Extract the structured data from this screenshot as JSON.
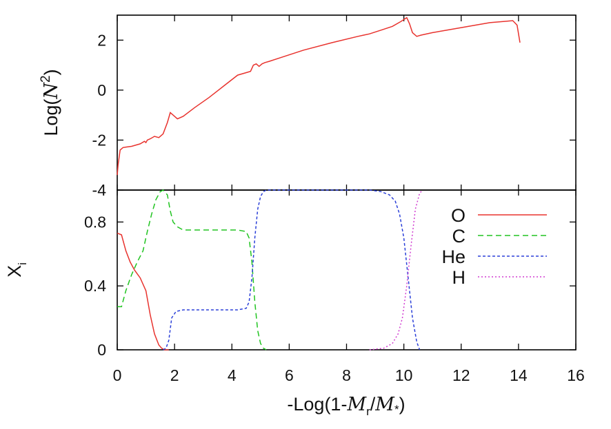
{
  "chart_data": [
    {
      "type": "line",
      "panel": "top",
      "ylabel": {
        "prefix": "Log(",
        "italic": "N",
        "sup": "2",
        "suffix": ")"
      },
      "xlim": [
        0,
        16
      ],
      "ylim": [
        -4,
        3
      ],
      "yticks": [
        -4,
        -2,
        0,
        2
      ],
      "ytick_labels": [
        "-4",
        "-2",
        "0",
        "2"
      ],
      "series": [
        {
          "color": "#e8322d",
          "dash": "solid",
          "x": [
            0.0,
            0.03,
            0.1,
            0.2,
            0.3,
            0.5,
            0.8,
            0.95,
            1.0,
            1.05,
            1.15,
            1.3,
            1.45,
            1.6,
            1.75,
            1.85,
            1.95,
            2.1,
            2.3,
            2.7,
            3.2,
            3.7,
            4.2,
            4.5,
            4.65,
            4.75,
            4.85,
            4.95,
            5.05,
            5.15,
            5.3,
            5.7,
            6.5,
            7.5,
            8.4,
            8.6,
            8.8,
            9.2,
            9.6,
            9.9,
            10.1,
            10.2,
            10.3,
            10.45,
            10.6,
            11.0,
            11.5,
            12.0,
            12.5,
            13.0,
            13.5,
            13.8,
            13.95,
            14.05
          ],
          "y": [
            -3.4,
            -3.0,
            -2.4,
            -2.3,
            -2.28,
            -2.25,
            -2.15,
            -2.05,
            -2.1,
            -2.0,
            -1.95,
            -1.85,
            -1.9,
            -1.75,
            -1.3,
            -0.9,
            -1.0,
            -1.15,
            -1.05,
            -0.7,
            -0.3,
            0.15,
            0.6,
            0.7,
            0.75,
            1.0,
            1.05,
            0.95,
            1.05,
            1.1,
            1.15,
            1.3,
            1.6,
            1.9,
            2.15,
            2.2,
            2.25,
            2.4,
            2.55,
            2.75,
            2.9,
            2.65,
            2.3,
            2.15,
            2.2,
            2.3,
            2.4,
            2.5,
            2.6,
            2.7,
            2.75,
            2.78,
            2.6,
            1.9
          ]
        }
      ]
    },
    {
      "type": "line",
      "panel": "bottom",
      "ylabel": {
        "main": "X",
        "sub": "i"
      },
      "xlabel": {
        "prefix": "-Log(1-",
        "m1": "M",
        "m1sub": "r",
        "slash": "/",
        "m2": "M",
        "m2sub": "*",
        "suffix": ")"
      },
      "xlim": [
        0,
        16
      ],
      "ylim": [
        0,
        1
      ],
      "xticks": [
        0,
        2,
        4,
        6,
        8,
        10,
        12,
        14,
        16
      ],
      "xtick_labels": [
        "0",
        "2",
        "4",
        "6",
        "8",
        "10",
        "12",
        "14",
        "16"
      ],
      "yticks": [
        0,
        0.4,
        0.8
      ],
      "ytick_labels": [
        "0",
        "0.4",
        "0.8"
      ],
      "legend_position": "top-right",
      "series": [
        {
          "name": "O",
          "color": "#e8322d",
          "dash": "solid",
          "x": [
            0.0,
            0.15,
            0.3,
            0.45,
            0.6,
            0.8,
            1.0,
            1.15,
            1.3,
            1.45,
            1.55,
            1.65,
            1.8
          ],
          "y": [
            0.73,
            0.72,
            0.62,
            0.55,
            0.5,
            0.45,
            0.37,
            0.22,
            0.1,
            0.03,
            0.01,
            0.0,
            0.0
          ]
        },
        {
          "name": "C",
          "color": "#20c420",
          "dash": "8,5",
          "x": [
            0.0,
            0.15,
            0.3,
            0.5,
            0.7,
            0.9,
            1.05,
            1.2,
            1.35,
            1.5,
            1.6,
            1.75,
            1.85,
            1.95,
            2.1,
            2.3,
            2.6,
            3.5,
            4.2,
            4.5,
            4.6,
            4.7,
            4.8,
            4.9,
            5.0,
            5.1,
            5.2
          ],
          "y": [
            0.27,
            0.27,
            0.37,
            0.47,
            0.55,
            0.62,
            0.74,
            0.85,
            0.94,
            0.99,
            1.0,
            0.97,
            0.87,
            0.8,
            0.77,
            0.75,
            0.75,
            0.75,
            0.75,
            0.74,
            0.7,
            0.55,
            0.3,
            0.12,
            0.04,
            0.01,
            0.0
          ]
        },
        {
          "name": "He",
          "color": "#2a3fd8",
          "dash": "4,3",
          "x": [
            1.6,
            1.7,
            1.8,
            1.9,
            2.05,
            2.3,
            2.6,
            3.5,
            4.2,
            4.5,
            4.6,
            4.7,
            4.8,
            4.9,
            5.0,
            5.1,
            5.2,
            5.3,
            8.8,
            9.2,
            9.5,
            9.7,
            9.85,
            10.0,
            10.15,
            10.3,
            10.45,
            10.55
          ],
          "y": [
            0.0,
            0.01,
            0.06,
            0.2,
            0.24,
            0.25,
            0.25,
            0.25,
            0.25,
            0.26,
            0.3,
            0.45,
            0.7,
            0.88,
            0.96,
            0.99,
            1.0,
            1.0,
            1.0,
            0.99,
            0.97,
            0.93,
            0.85,
            0.7,
            0.45,
            0.2,
            0.05,
            0.0
          ]
        },
        {
          "name": "H",
          "color": "#d13cd1",
          "dash": "2,3",
          "x": [
            8.8,
            9.3,
            9.6,
            9.8,
            9.95,
            10.1,
            10.25,
            10.4,
            10.55,
            10.65
          ],
          "y": [
            0.0,
            0.01,
            0.04,
            0.1,
            0.2,
            0.4,
            0.65,
            0.88,
            0.98,
            1.0
          ]
        }
      ]
    }
  ]
}
